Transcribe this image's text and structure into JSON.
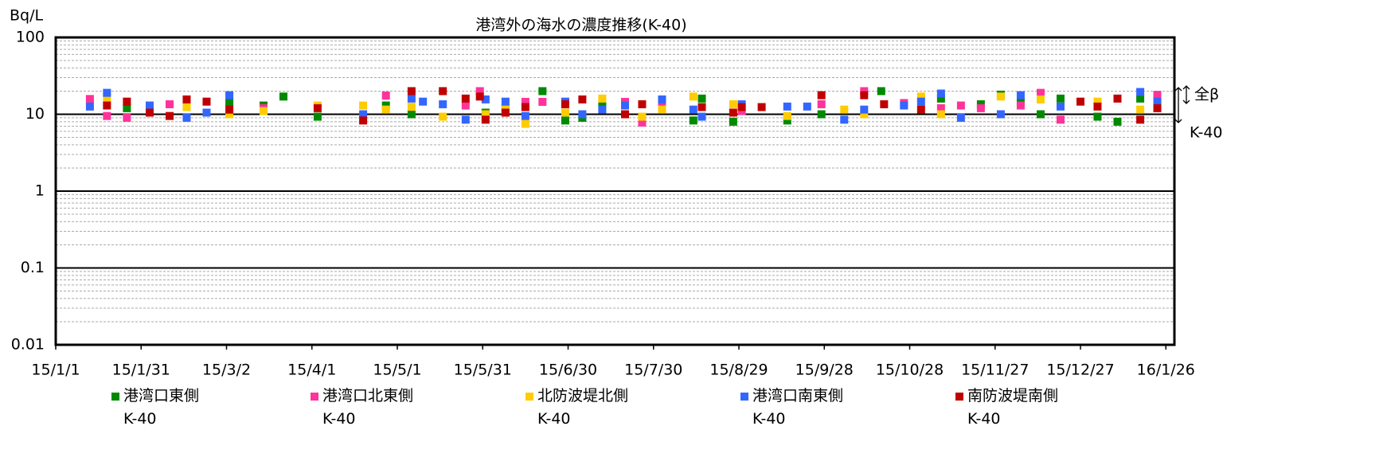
{
  "chart_data": {
    "type": "scatter",
    "title": "港湾外の海水の濃度推移(K-40)",
    "y_label": "Bq/L",
    "annotations": [
      "全β",
      "K-40"
    ],
    "yscale": "log",
    "ylim": [
      0.01,
      100
    ],
    "yticks": [
      0.01,
      0.1,
      1,
      10,
      100
    ],
    "grid": true,
    "minor_grid": true,
    "xlim": [
      "15/1/1",
      "16/1/29"
    ],
    "xticks": [
      "15/1/1",
      "15/1/31",
      "15/3/2",
      "15/4/1",
      "15/5/1",
      "15/5/31",
      "15/6/30",
      "15/7/30",
      "15/8/29",
      "15/9/28",
      "15/10/28",
      "15/11/27",
      "15/12/27",
      "16/1/26"
    ],
    "legend": "bottom",
    "series": [
      {
        "name": "港湾口東側\nK-40",
        "color": "#008a00",
        "x": [
          "15/1/26",
          "15/3/3",
          "15/3/15",
          "15/3/22",
          "15/4/3",
          "15/4/27",
          "15/5/6",
          "15/6/1",
          "15/6/8",
          "15/6/21",
          "15/6/29",
          "15/7/5",
          "15/7/12",
          "15/8/13",
          "15/8/16",
          "15/8/27",
          "15/9/15",
          "15/9/27",
          "15/10/18",
          "15/11/8",
          "15/11/22",
          "15/11/29",
          "15/12/6",
          "15/12/13",
          "15/12/20",
          "16/1/2",
          "16/1/9",
          "16/1/17"
        ],
        "values": [
          12,
          14,
          13,
          17,
          9.3,
          13,
          10,
          10.5,
          12,
          20,
          8.3,
          9,
          13,
          8.3,
          16,
          8,
          8.3,
          10,
          20,
          16,
          13.5,
          18,
          14.5,
          10,
          16,
          9.3,
          8,
          16
        ]
      },
      {
        "name": "港湾口北東側\nK-40",
        "color": "#ff3399",
        "x": [
          "15/1/13",
          "15/1/19",
          "15/1/26",
          "15/2/10",
          "15/3/15",
          "15/4/27",
          "15/5/25",
          "15/5/30",
          "15/6/15",
          "15/6/21",
          "15/7/20",
          "15/7/26",
          "15/8/2",
          "15/8/30",
          "15/9/27",
          "15/10/12",
          "15/10/26",
          "15/11/8",
          "15/11/15",
          "15/11/22",
          "15/12/6",
          "15/12/13",
          "15/12/20",
          "16/1/23"
        ],
        "values": [
          15.8,
          9.5,
          9,
          13.5,
          12,
          17.5,
          13,
          20,
          14.5,
          14.5,
          14.5,
          7.8,
          12.5,
          11,
          13.5,
          20,
          14,
          12,
          13,
          12,
          13,
          19,
          8.5,
          17.9
        ]
      },
      {
        "name": "北防波堤北側\nK-40",
        "color": "#ffcc00",
        "x": [
          "15/1/19",
          "15/2/16",
          "15/3/3",
          "15/3/15",
          "15/4/3",
          "15/4/19",
          "15/4/27",
          "15/5/6",
          "15/5/17",
          "15/6/1",
          "15/6/8",
          "15/6/15",
          "15/6/29",
          "15/7/12",
          "15/7/26",
          "15/8/2",
          "15/8/13",
          "15/8/27",
          "15/9/15",
          "15/10/5",
          "15/10/12",
          "15/11/1",
          "15/11/8",
          "15/11/29",
          "15/12/13",
          "16/1/2",
          "16/1/17"
        ],
        "values": [
          16.5,
          12.4,
          10,
          11,
          13,
          13,
          11.5,
          12.5,
          9.3,
          10,
          12,
          7.5,
          10.5,
          16,
          9.3,
          11.5,
          17,
          13.5,
          9.5,
          11.5,
          10,
          17,
          10,
          17,
          15.6,
          14.6,
          11.5
        ]
      },
      {
        "name": "港湾口南東側\nK-40",
        "color": "#3366ff",
        "x": [
          "15/1/13",
          "15/1/19",
          "15/2/3",
          "15/2/16",
          "15/2/23",
          "15/3/3",
          "15/4/19",
          "15/5/6",
          "15/5/10",
          "15/5/17",
          "15/5/25",
          "15/6/1",
          "15/6/8",
          "15/6/15",
          "15/6/29",
          "15/7/5",
          "15/7/12",
          "15/7/20",
          "15/8/2",
          "15/8/13",
          "15/8/16",
          "15/8/30",
          "15/9/15",
          "15/9/22",
          "15/10/5",
          "15/10/12",
          "15/10/26",
          "15/11/1",
          "15/11/8",
          "15/11/15",
          "15/11/29",
          "15/12/6",
          "15/12/20",
          "16/1/17",
          "16/1/23"
        ],
        "values": [
          12.6,
          19,
          13,
          9,
          10.5,
          17.7,
          10,
          16,
          14.6,
          13.5,
          8.5,
          15.6,
          14.6,
          9.5,
          14.6,
          10,
          11.5,
          13,
          15.6,
          11.5,
          9.3,
          13.5,
          12.6,
          12.6,
          8.5,
          11.5,
          13,
          14.6,
          18.6,
          9,
          10,
          17.7,
          12.6,
          19.5,
          14.6
        ]
      },
      {
        "name": "南防波堤南側\nK-40",
        "color": "#c00000",
        "x": [
          "15/1/19",
          "15/1/26",
          "15/2/3",
          "15/2/10",
          "15/2/16",
          "15/2/23",
          "15/3/3",
          "15/4/3",
          "15/4/19",
          "15/5/6",
          "15/5/17",
          "15/5/25",
          "15/5/30",
          "15/6/1",
          "15/6/8",
          "15/6/15",
          "15/6/29",
          "15/7/5",
          "15/7/20",
          "15/7/26",
          "15/8/16",
          "15/8/27",
          "15/8/30",
          "15/9/6",
          "15/9/27",
          "15/10/12",
          "15/10/19",
          "15/11/1",
          "15/12/27",
          "16/1/2",
          "16/1/9",
          "16/1/17",
          "16/1/23"
        ],
        "values": [
          13,
          14.6,
          10.5,
          9.5,
          15.6,
          14.6,
          11.5,
          12,
          8.3,
          20,
          20,
          16,
          17,
          8.5,
          10.5,
          12.4,
          13.5,
          15.6,
          10,
          13.5,
          12.4,
          10.5,
          12.4,
          12.4,
          17.7,
          17.7,
          13.5,
          11.5,
          14.6,
          12.6,
          16,
          8.5,
          12
        ]
      }
    ]
  }
}
